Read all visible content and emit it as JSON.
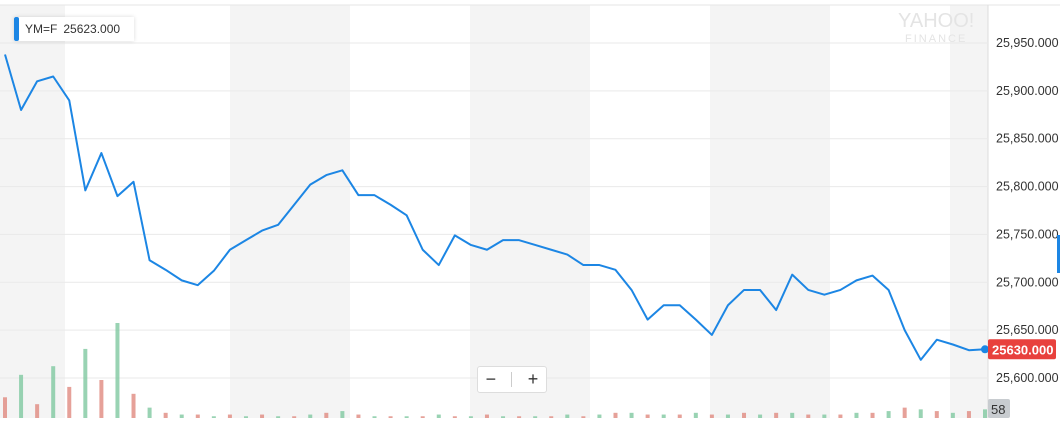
{
  "legend": {
    "symbol": "YM=F",
    "value": "25623.000",
    "color": "#1c86e4"
  },
  "watermark": "YAHOO! FINANCE",
  "zoom_controls": {
    "zoom_out": "−",
    "zoom_in": "+"
  },
  "chart_data": {
    "type": "line",
    "title": "",
    "xlabel": "",
    "ylabel": "",
    "ylim": [
      25580,
      25965
    ],
    "y_ticks": [
      "25,600.000",
      "25,650.000",
      "25,700.000",
      "25,750.000",
      "25,800.000",
      "25,850.000",
      "25,900.000",
      "25,950.000"
    ],
    "y_tick_values": [
      25600,
      25650,
      25700,
      25750,
      25800,
      25850,
      25900,
      25950
    ],
    "grid": true,
    "line_color": "#1c86e4",
    "current_price_label": "25630.000",
    "current_price_color": "#e8413d",
    "volume_label": "58",
    "series": [
      {
        "values": [
          25938,
          25880,
          25910,
          25915,
          25890,
          25796,
          25835,
          25790,
          25805,
          25723,
          25713,
          25702,
          25697,
          25712,
          25734,
          25744,
          25754,
          25760,
          25781,
          25802,
          25812,
          25817,
          25791,
          25791,
          25781,
          25770,
          25734,
          25718,
          25749,
          25739,
          25734,
          25744,
          25744,
          25739,
          25734,
          25729,
          25718,
          25718,
          25713,
          25692,
          25661,
          25676,
          25676,
          25661,
          25645,
          25676,
          25692,
          25692,
          25671,
          25708,
          25692,
          25687,
          25692,
          25702,
          25707,
          25692,
          25650,
          25619,
          25640,
          25635,
          25629,
          25630
        ]
      }
    ],
    "volumes": [
      12,
      25,
      8,
      30,
      18,
      40,
      22,
      55,
      14,
      6,
      3,
      2,
      2,
      1,
      2,
      1,
      2,
      1,
      1,
      2,
      3,
      4,
      2,
      1,
      1,
      1,
      1,
      2,
      1,
      1,
      2,
      1,
      1,
      1,
      1,
      2,
      1,
      2,
      3,
      3,
      2,
      2,
      2,
      3,
      2,
      2,
      3,
      2,
      3,
      3,
      2,
      2,
      2,
      3,
      3,
      4,
      6,
      5,
      4,
      3,
      4,
      5
    ]
  }
}
